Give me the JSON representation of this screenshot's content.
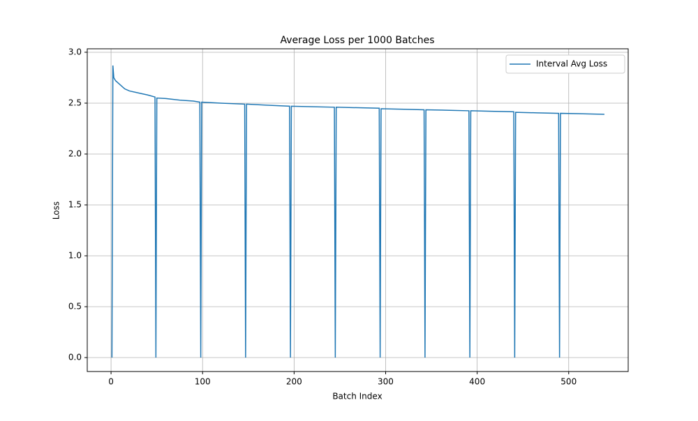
{
  "chart_data": {
    "type": "line",
    "title": "Average Loss per 1000 Batches",
    "x_label": "Batch Index",
    "y_label": "Loss",
    "x": [
      1,
      2,
      3,
      5,
      10,
      15,
      20,
      30,
      40,
      48,
      49,
      50,
      60,
      75,
      90,
      97,
      98,
      99,
      120,
      146,
      147,
      148,
      170,
      195,
      196,
      197,
      220,
      244,
      245,
      246,
      270,
      293,
      294,
      295,
      320,
      342,
      343,
      344,
      370,
      391,
      392,
      393,
      415,
      440,
      441,
      442,
      465,
      489,
      490,
      491,
      515,
      539
    ],
    "series": [
      {
        "name": "Interval Avg Loss",
        "color": "#1f77b4",
        "values": [
          0,
          2.87,
          2.75,
          2.72,
          2.68,
          2.64,
          2.62,
          2.6,
          2.58,
          2.56,
          0,
          2.55,
          2.545,
          2.53,
          2.52,
          2.51,
          0,
          2.51,
          2.5,
          2.49,
          0,
          2.49,
          2.48,
          2.47,
          0,
          2.47,
          2.465,
          2.46,
          0,
          2.46,
          2.455,
          2.45,
          0,
          2.445,
          2.44,
          2.435,
          0,
          2.435,
          2.43,
          2.425,
          0,
          2.425,
          2.42,
          2.415,
          0,
          2.41,
          2.405,
          2.4,
          0,
          2.4,
          2.395,
          2.39
        ]
      }
    ],
    "xlim": [
      -26,
      565
    ],
    "ylim": [
      -0.137,
      3.034
    ],
    "xticks": [
      0,
      100,
      200,
      300,
      400,
      500
    ],
    "yticks": [
      {
        "value": 0,
        "label": "0.0"
      },
      0.5,
      {
        "value": 1,
        "label": "1.0"
      },
      1.5,
      {
        "value": 2,
        "label": "2.0"
      },
      2.5,
      {
        "value": 3,
        "label": "3.0"
      }
    ],
    "grid": true,
    "legend": "upper right"
  }
}
